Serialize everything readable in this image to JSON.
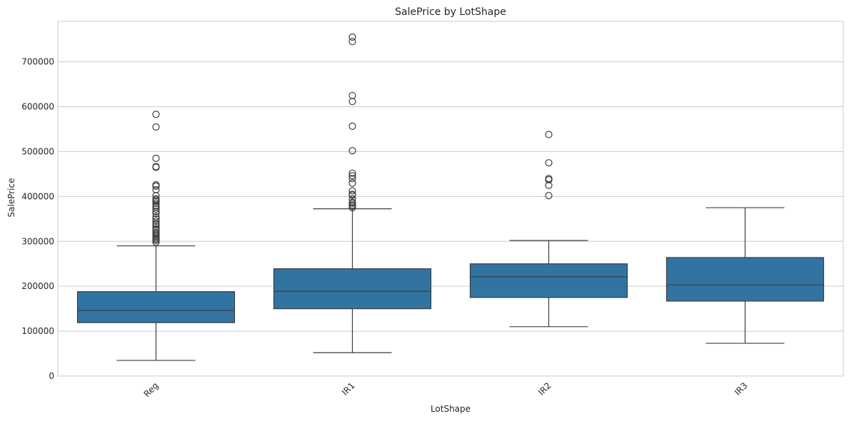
{
  "chart_data": {
    "type": "box",
    "title": "SalePrice by LotShape",
    "xlabel": "LotShape",
    "ylabel": "SalePrice",
    "ylim": [
      0,
      790000
    ],
    "yticks": [
      0,
      100000,
      200000,
      300000,
      400000,
      500000,
      600000,
      700000
    ],
    "ytick_labels": [
      "0",
      "100000",
      "200000",
      "300000",
      "400000",
      "500000",
      "600000",
      "700000"
    ],
    "grid": "horizontal",
    "box_color": "#3274a1",
    "edge_color": "#3d3d3d",
    "categories": [
      "Reg",
      "IR1",
      "IR2",
      "IR3"
    ],
    "boxes": [
      {
        "category": "Reg",
        "whisker_low": 34900,
        "q1": 119000,
        "median": 146000,
        "q3": 188000,
        "whisker_high": 290000,
        "outliers": [
          582933,
          555000,
          485000,
          466500,
          465000,
          426000,
          423000,
          415000,
          402000,
          395000,
          392000,
          389000,
          385000,
          380000,
          377000,
          372000,
          367000,
          362000,
          355000,
          350000,
          345000,
          340000,
          337000,
          333000,
          328000,
          325000,
          320000,
          317000,
          314000,
          311000,
          308000,
          305000,
          302000,
          298000
        ]
      },
      {
        "category": "IR1",
        "whisker_low": 52000,
        "q1": 150000,
        "median": 189000,
        "q3": 239000,
        "whisker_high": 372500,
        "outliers": [
          755000,
          745000,
          625000,
          611657,
          556581,
          501837,
          451950,
          446261,
          440000,
          430000,
          412500,
          405000,
          402861,
          394617,
          387000,
          385000,
          381000,
          378500,
          375000
        ]
      },
      {
        "category": "IR2",
        "whisker_low": 110000,
        "q1": 175000,
        "median": 221000,
        "q3": 250000,
        "whisker_high": 302000,
        "outliers": [
          538000,
          475000,
          440000,
          437154,
          424870,
          402000
        ]
      },
      {
        "category": "IR3",
        "whisker_low": 73000,
        "q1": 167000,
        "median": 203000,
        "q3": 264000,
        "whisker_high": 375000,
        "outliers": []
      }
    ]
  }
}
